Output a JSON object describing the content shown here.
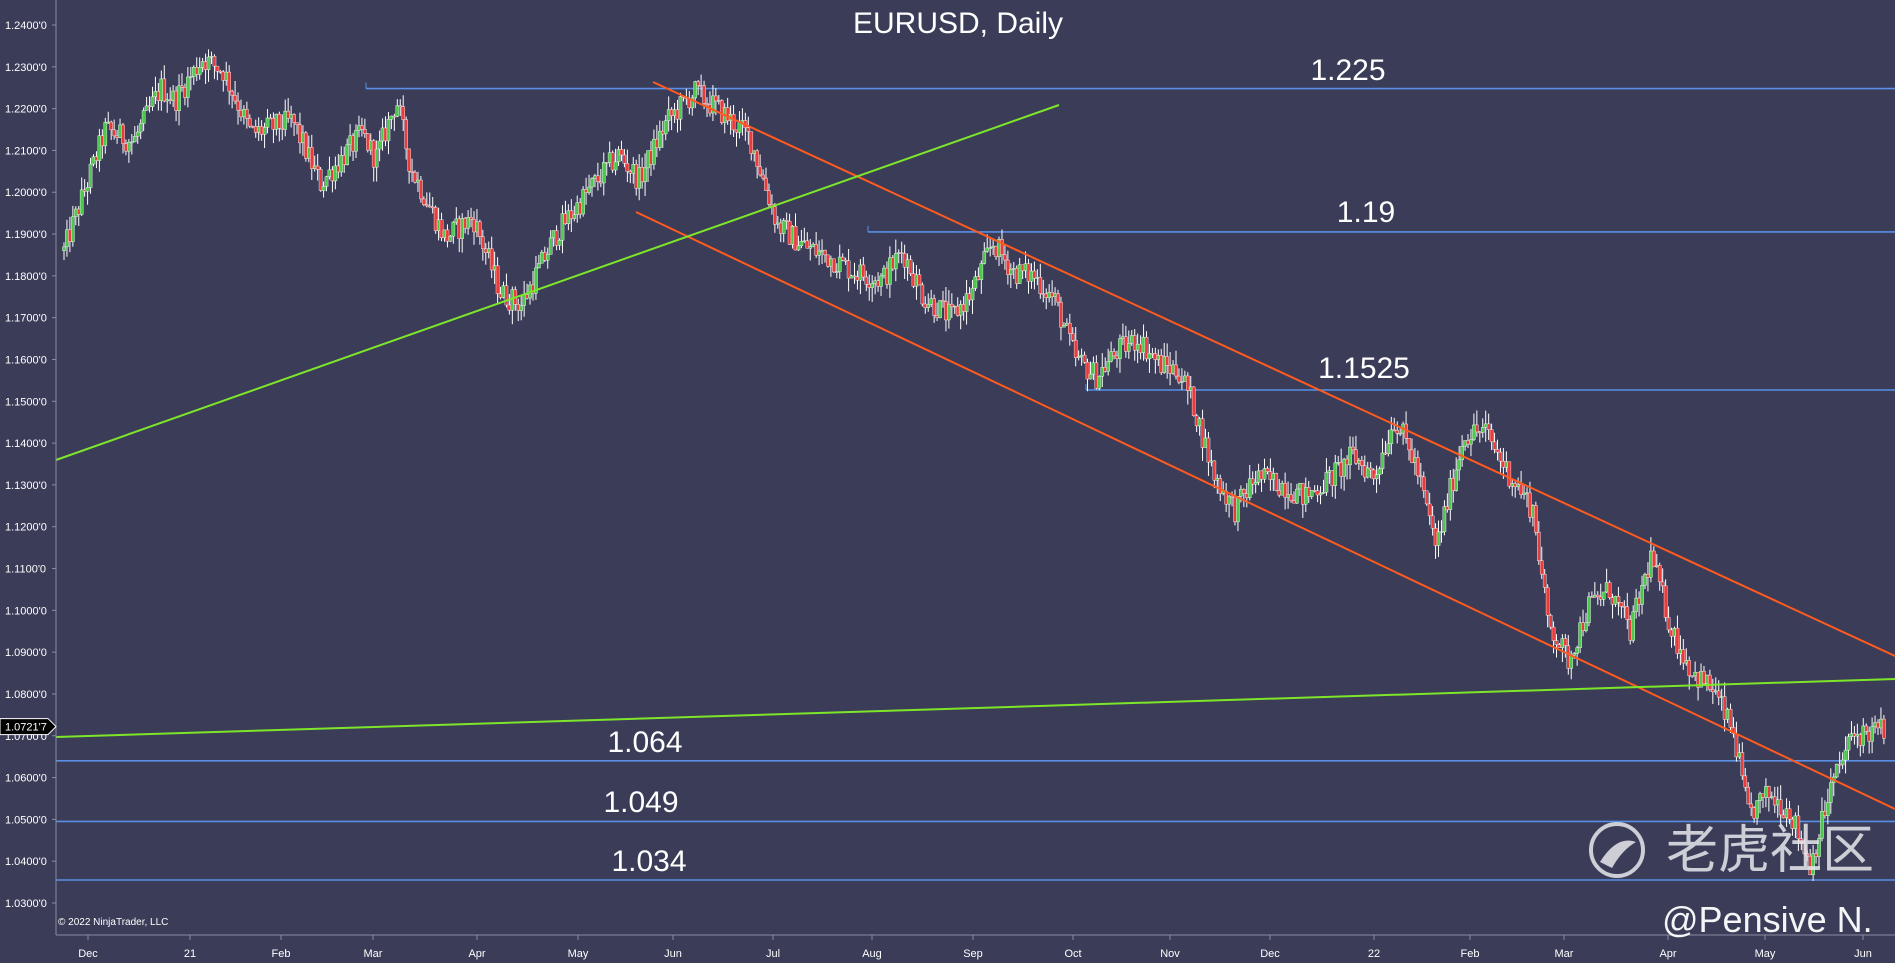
{
  "chart_data": {
    "type": "candlestick",
    "title": "EURUSD, Daily",
    "ylim": [
      1.025,
      1.25
    ],
    "y_ticks": [
      "1.2400'0",
      "1.2300'0",
      "1.2200'0",
      "1.2100'0",
      "1.2000'0",
      "1.1900'0",
      "1.1800'0",
      "1.1700'0",
      "1.1600'0",
      "1.1500'0",
      "1.1400'0",
      "1.1300'0",
      "1.1200'0",
      "1.1100'0",
      "1.1000'0",
      "1.0900'0",
      "1.0800'0",
      "1.0700'0",
      "1.0600'0",
      "1.0500'0",
      "1.0400'0",
      "1.0300'0"
    ],
    "y_tick_values": [
      1.24,
      1.23,
      1.22,
      1.21,
      1.2,
      1.19,
      1.18,
      1.17,
      1.16,
      1.15,
      1.14,
      1.13,
      1.12,
      1.11,
      1.1,
      1.09,
      1.08,
      1.07,
      1.06,
      1.05,
      1.04,
      1.03
    ],
    "x_ticks": [
      "Dec",
      "21",
      "Feb",
      "Mar",
      "Apr",
      "May",
      "Jun",
      "Jul",
      "Aug",
      "Sep",
      "Oct",
      "Nov",
      "Dec",
      "22",
      "Feb",
      "Mar",
      "Apr",
      "May",
      "Jun"
    ],
    "current_price": "1.0721'7",
    "current_price_value": 1.0722,
    "horizontal_levels": [
      {
        "label": "1.225",
        "value": 1.2248,
        "from": "Mar"
      },
      {
        "label": "1.19",
        "value": 1.1905,
        "from": "Aug"
      },
      {
        "label": "1.1525",
        "value": 1.1527,
        "from": "Oct"
      },
      {
        "label": "1.064",
        "value": 1.064,
        "from": "Dec"
      },
      {
        "label": "1.049",
        "value": 1.0495,
        "from": "Dec"
      },
      {
        "label": "1.034",
        "value": 1.0355,
        "from": "Dec"
      }
    ],
    "trend_lines": [
      {
        "name": "upper-channel",
        "color": "#ff5a1f",
        "points": [
          [
            "Jun",
            1.2265
          ],
          [
            "Jun",
            1.0884
          ]
        ]
      },
      {
        "name": "lower-channel",
        "color": "#ff5a1f",
        "points": [
          [
            "May",
            1.1945
          ],
          [
            "Jun",
            1.0522
          ]
        ]
      },
      {
        "name": "green-support",
        "color": "#7ee62a",
        "points": [
          [
            "Dec",
            1.1367
          ],
          [
            "Sep",
            1.2208
          ]
        ]
      },
      {
        "name": "green-long",
        "color": "#7ee62a",
        "points": [
          [
            "Dec",
            1.0692
          ],
          [
            "Jun",
            1.0835
          ]
        ]
      }
    ],
    "price_path": [
      [
        0,
        1.186
      ],
      [
        6,
        1.215
      ],
      [
        10,
        1.212
      ],
      [
        14,
        1.225
      ],
      [
        16,
        1.222
      ],
      [
        20,
        1.232
      ],
      [
        23,
        1.229
      ],
      [
        27,
        1.214
      ],
      [
        33,
        1.217
      ],
      [
        37,
        1.202
      ],
      [
        43,
        1.214
      ],
      [
        45,
        1.208
      ],
      [
        48,
        1.222
      ],
      [
        50,
        1.206
      ],
      [
        55,
        1.189
      ],
      [
        59,
        1.194
      ],
      [
        63,
        1.176
      ],
      [
        66,
        1.173
      ],
      [
        71,
        1.19
      ],
      [
        76,
        1.201
      ],
      [
        80,
        1.209
      ],
      [
        83,
        1.203
      ],
      [
        87,
        1.217
      ],
      [
        91,
        1.224
      ],
      [
        95,
        1.219
      ],
      [
        99,
        1.213
      ],
      [
        103,
        1.192
      ],
      [
        107,
        1.187
      ],
      [
        111,
        1.184
      ],
      [
        114,
        1.181
      ],
      [
        118,
        1.179
      ],
      [
        121,
        1.186
      ],
      [
        124,
        1.175
      ],
      [
        128,
        1.17
      ],
      [
        131,
        1.176
      ],
      [
        134,
        1.188
      ],
      [
        137,
        1.181
      ],
      [
        140,
        1.18
      ],
      [
        143,
        1.174
      ],
      [
        146,
        1.16
      ],
      [
        149,
        1.156
      ],
      [
        152,
        1.162
      ],
      [
        155,
        1.165
      ],
      [
        158,
        1.159
      ],
      [
        161,
        1.157
      ],
      [
        163,
        1.149
      ],
      [
        166,
        1.132
      ],
      [
        169,
        1.124
      ],
      [
        172,
        1.132
      ],
      [
        176,
        1.13
      ],
      [
        179,
        1.127
      ],
      [
        183,
        1.132
      ],
      [
        186,
        1.137
      ],
      [
        189,
        1.132
      ],
      [
        192,
        1.146
      ],
      [
        195,
        1.135
      ],
      [
        198,
        1.115
      ],
      [
        202,
        1.142
      ],
      [
        205,
        1.143
      ],
      [
        208,
        1.134
      ],
      [
        212,
        1.124
      ],
      [
        214,
        1.098
      ],
      [
        217,
        1.088
      ],
      [
        220,
        1.101
      ],
      [
        223,
        1.105
      ],
      [
        226,
        1.095
      ],
      [
        229,
        1.113
      ],
      [
        232,
        1.095
      ],
      [
        235,
        1.085
      ],
      [
        238,
        1.081
      ],
      [
        241,
        1.07
      ],
      [
        243,
        1.051
      ],
      [
        246,
        1.056
      ],
      [
        249,
        1.052
      ],
      [
        252,
        1.039
      ],
      [
        255,
        1.058
      ],
      [
        258,
        1.07
      ],
      [
        261,
        1.071
      ],
      [
        263,
        1.072
      ]
    ]
  },
  "annotations": {
    "copyright": "© 2022 NinjaTrader, LLC",
    "watermark_cn": "老虎社区",
    "watermark_handle": "@Pensive N."
  }
}
